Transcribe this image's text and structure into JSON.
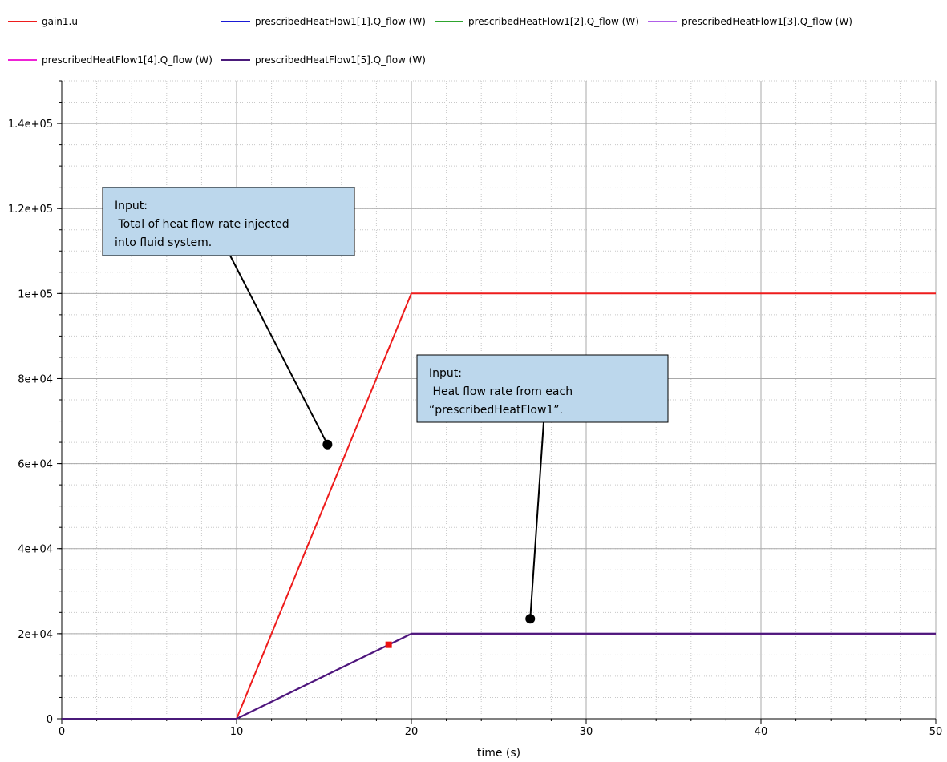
{
  "chart_data": {
    "type": "line",
    "title": "",
    "xlabel": "time (s)",
    "ylabel": "",
    "xlim": [
      0,
      50
    ],
    "ylim": [
      0,
      150000
    ],
    "grid": true,
    "legend_position": "top",
    "x_ticks": [
      0,
      10,
      20,
      30,
      40,
      50
    ],
    "x_tick_labels": [
      "0",
      "10",
      "20",
      "30",
      "40",
      "50"
    ],
    "y_ticks": [
      0,
      20000,
      40000,
      60000,
      80000,
      100000,
      120000,
      140000
    ],
    "y_tick_labels": [
      "0",
      "2e+04",
      "4e+04",
      "6e+04",
      "8e+04",
      "1e+05",
      "1.2e+05",
      "1.4e+05"
    ],
    "series": [
      {
        "name": "gain1.u",
        "color": "#ee1c1c",
        "x": [
          0,
          10,
          20,
          50
        ],
        "y": [
          0,
          0,
          100000,
          100000
        ]
      },
      {
        "name": "prescribedHeatFlow1[1].Q_flow (W)",
        "color": "#1a1ad6",
        "x": [
          0,
          10,
          20,
          50
        ],
        "y": [
          0,
          0,
          20000,
          20000
        ]
      },
      {
        "name": "prescribedHeatFlow1[2].Q_flow (W)",
        "color": "#2ea52e",
        "x": [
          0,
          10,
          20,
          50
        ],
        "y": [
          0,
          0,
          20000,
          20000
        ]
      },
      {
        "name": "prescribedHeatFlow1[3].Q_flow (W)",
        "color": "#b05ee8",
        "x": [
          0,
          10,
          20,
          50
        ],
        "y": [
          0,
          0,
          20000,
          20000
        ]
      },
      {
        "name": "prescribedHeatFlow1[4].Q_flow (W)",
        "color": "#ee22d6",
        "x": [
          0,
          10,
          20,
          50
        ],
        "y": [
          0,
          0,
          20000,
          20000
        ]
      },
      {
        "name": "prescribedHeatFlow1[5].Q_flow (W)",
        "color": "#4a1a7a",
        "x": [
          0,
          10,
          20,
          50
        ],
        "y": [
          0,
          0,
          20000,
          20000
        ]
      }
    ],
    "marker": {
      "x": 18.7,
      "y": 17400,
      "color": "#ee1111"
    },
    "annotations": [
      {
        "lines": [
          "Input:",
          " Total of heat flow rate injected",
          "into fluid system."
        ],
        "point": {
          "x": 15.2,
          "y": 64500
        }
      },
      {
        "lines": [
          "Input:",
          " Heat flow rate from each",
          "“prescribedHeatFlow1”."
        ],
        "point": {
          "x": 26.8,
          "y": 23500
        }
      }
    ]
  }
}
